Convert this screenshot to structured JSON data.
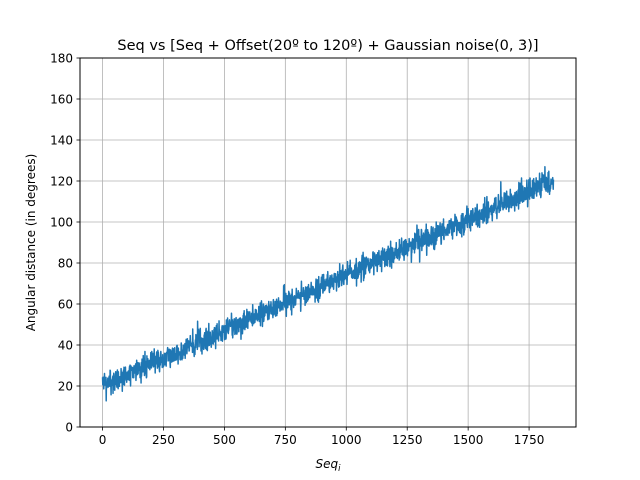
{
  "chart_data": {
    "type": "line",
    "title": "Seq vs [Seq + Offset(20º to 120º) + Gaussian noise(0, 3)]",
    "xlabel": {
      "base": "Seq",
      "sub": "i"
    },
    "ylabel": "Angular distance (in degrees)",
    "xlim": [
      -92.5,
      1942.5
    ],
    "ylim": [
      0,
      180
    ],
    "xticks": [
      0,
      250,
      500,
      750,
      1000,
      1250,
      1500,
      1750
    ],
    "yticks": [
      0,
      20,
      40,
      60,
      80,
      100,
      120,
      140,
      160,
      180
    ],
    "grid": true,
    "series": [
      {
        "color": "#1f77b4",
        "x_range": [
          0,
          1850
        ],
        "y_start": 20,
        "y_end": 120,
        "noise_sd": 3
      }
    ]
  }
}
